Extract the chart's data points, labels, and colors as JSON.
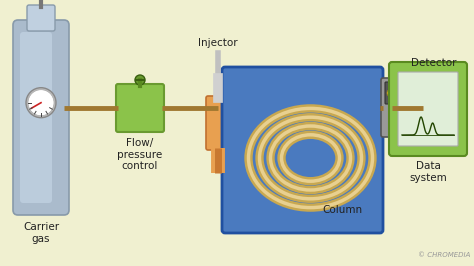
{
  "bg_color": "#f0f0d0",
  "labels": {
    "carrier_gas": "Carrier\ngas",
    "flow_pressure": "Flow/\npressure\ncontrol",
    "injector": "Injector",
    "column": "Column",
    "detector": "Detector",
    "data_system": "Data\nsystem",
    "chromedia": "© CHROMEDIA"
  },
  "colors": {
    "tank_body": "#aabbcc",
    "tank_top": "#c0d0e0",
    "gauge_face": "#ffffff",
    "gauge_ring": "#bbbbbb",
    "flow_box": "#8bc34a",
    "flow_box_dark": "#6a9a30",
    "injector_body": "#e8a050",
    "injector_needle": "#c87830",
    "column_box": "#4a7abf",
    "column_coil": "#c8a850",
    "coil_light": "#e8d090",
    "detector_box": "#999999",
    "detector_top": "#555555",
    "data_box": "#8bc34a",
    "pipe_color": "#a07830",
    "chromedia_color": "#999999",
    "label_color": "#222222"
  },
  "figsize": [
    4.74,
    2.66
  ],
  "dpi": 100
}
